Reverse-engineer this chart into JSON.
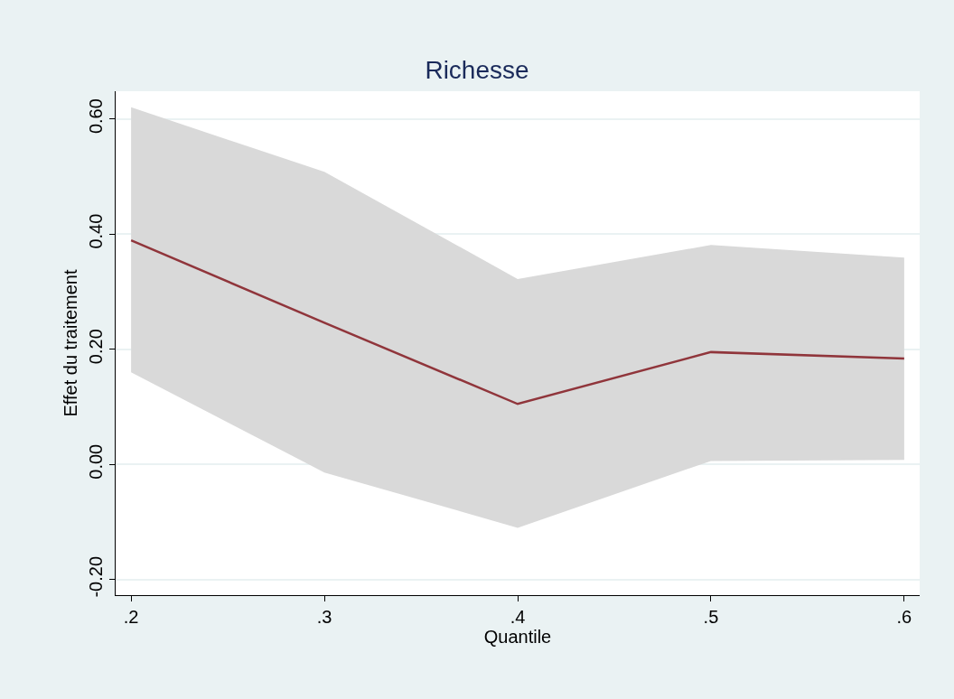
{
  "chart_data": {
    "type": "line",
    "title": "Richesse",
    "xlabel": "Quantile",
    "ylabel": "Effet du traitement",
    "x": [
      0.2,
      0.3,
      0.4,
      0.5,
      0.6
    ],
    "series": [
      {
        "color": "#90353b",
        "values": [
          0.389,
          0.246,
          0.105,
          0.195,
          0.184
        ],
        "lower": [
          0.16,
          -0.014,
          -0.11,
          0.006,
          0.008
        ],
        "upper": [
          0.62,
          0.508,
          0.322,
          0.381,
          0.359
        ]
      }
    ],
    "xlim": [
      0.192,
      0.608
    ],
    "ylim": [
      -0.227,
      0.648
    ],
    "xticks": [
      {
        "value": 0.2,
        "label": ".2"
      },
      {
        "value": 0.3,
        "label": ".3"
      },
      {
        "value": 0.4,
        "label": ".4"
      },
      {
        "value": 0.5,
        "label": ".5"
      },
      {
        "value": 0.6,
        "label": ".6"
      }
    ],
    "yticks": [
      {
        "value": -0.2,
        "label": "-0.20"
      },
      {
        "value": 0.0,
        "label": "0.00"
      },
      {
        "value": 0.2,
        "label": "0.20"
      },
      {
        "value": 0.4,
        "label": "0.40"
      },
      {
        "value": 0.6,
        "label": "0.60"
      }
    ],
    "grid": "y",
    "marker": "none",
    "line_style": "solid"
  }
}
